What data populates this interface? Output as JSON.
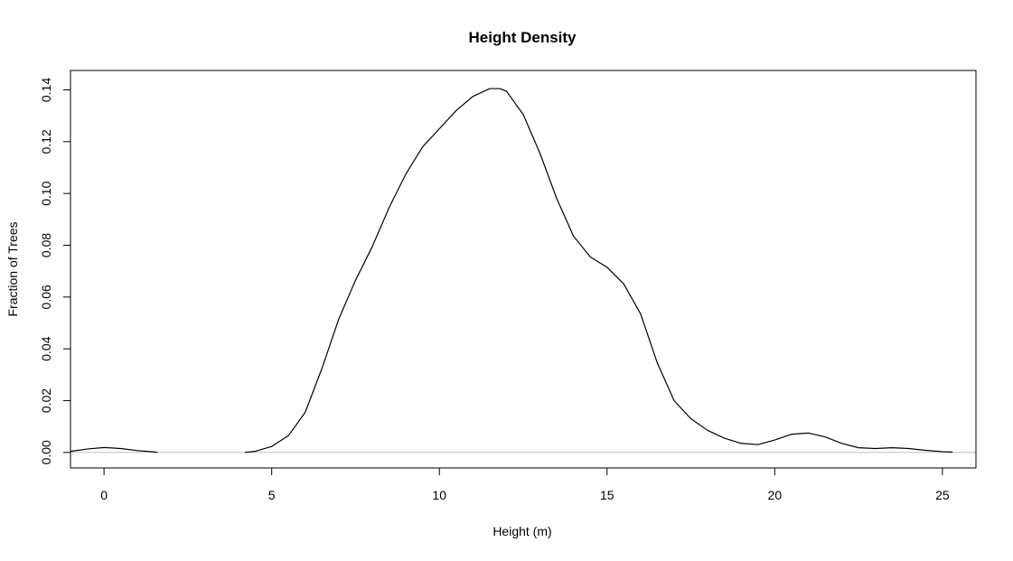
{
  "chart_data": {
    "type": "line",
    "title": "Height Density",
    "xlabel": "Height (m)",
    "ylabel": "Fraction of Trees",
    "xlim": [
      -1.0,
      26.0
    ],
    "ylim": [
      -0.006,
      0.1475
    ],
    "x_ticks": [
      0,
      5,
      10,
      15,
      20,
      25
    ],
    "x_tick_labels": [
      "0",
      "5",
      "10",
      "15",
      "20",
      "25"
    ],
    "y_ticks": [
      0.0,
      0.02,
      0.04,
      0.06,
      0.08,
      0.1,
      0.12,
      0.14
    ],
    "y_tick_labels": [
      "0.00",
      "0.02",
      "0.04",
      "0.06",
      "0.08",
      "0.10",
      "0.12",
      "0.14"
    ],
    "baseline": 0,
    "grid": false,
    "legend": "none",
    "colors": {
      "curve": "#000000",
      "baseline": "#bebebe",
      "axes": "#000000",
      "background": "#ffffff"
    },
    "series": [
      {
        "x": [
          -1.0,
          -0.5,
          0.0,
          0.5,
          1.0,
          1.5,
          1.6
        ],
        "y": [
          0.0004,
          0.0013,
          0.0019,
          0.0015,
          0.0007,
          0.0002,
          0.0
        ],
        "_comment": "first segment (small bump near 0)"
      },
      {
        "x": [
          4.2,
          4.5,
          5.0,
          5.5,
          6.0,
          6.5,
          7.0,
          7.5,
          8.0,
          8.5,
          9.0,
          9.5,
          10.0,
          10.5,
          11.0,
          11.5,
          11.8,
          12.0,
          12.5,
          13.0,
          13.5,
          14.0,
          14.5,
          15.0,
          15.5,
          16.0,
          16.5,
          17.0,
          17.5,
          18.0,
          18.5,
          19.0,
          19.5,
          20.0,
          20.5,
          21.0,
          21.5,
          22.0,
          22.5,
          23.0,
          23.5,
          24.0,
          24.5,
          25.0,
          25.3
        ],
        "y": [
          0.0,
          0.0004,
          0.0023,
          0.0065,
          0.0155,
          0.0325,
          0.0515,
          0.0665,
          0.0795,
          0.0945,
          0.1075,
          0.118,
          0.125,
          0.132,
          0.1375,
          0.1405,
          0.1405,
          0.1395,
          0.1305,
          0.1155,
          0.098,
          0.0835,
          0.0755,
          0.0715,
          0.065,
          0.0535,
          0.0345,
          0.02,
          0.013,
          0.0085,
          0.0055,
          0.0035,
          0.003,
          0.0048,
          0.007,
          0.0075,
          0.006,
          0.0035,
          0.0018,
          0.0015,
          0.0018,
          0.0015,
          0.0008,
          0.0003,
          0.0001
        ],
        "_comment": "main density curve"
      }
    ]
  }
}
